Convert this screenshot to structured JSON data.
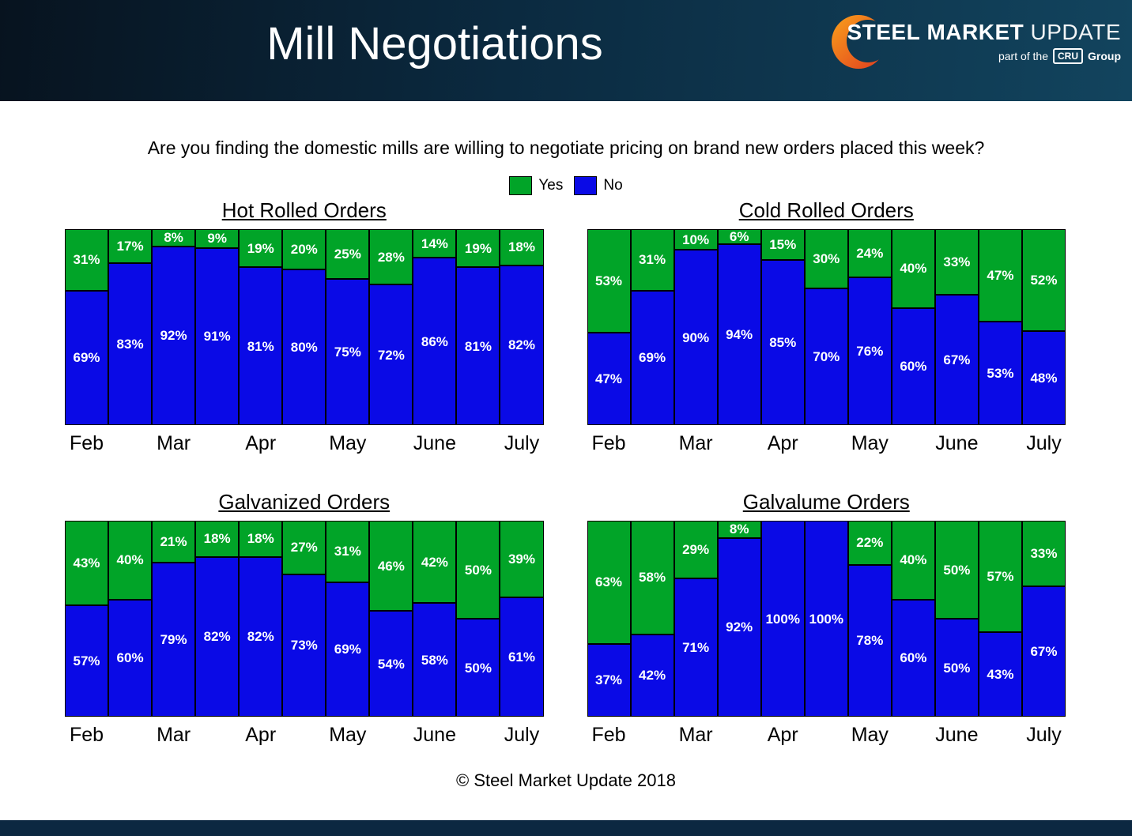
{
  "header": {
    "title": "Mill Negotiations",
    "logo": {
      "brand_steel": "STEEL",
      "brand_market": "MARKET",
      "brand_update": "UPDATE",
      "tagline_prefix": "part of the",
      "tagline_cru": "CRU",
      "tagline_suffix": "Group"
    }
  },
  "question": "Are you finding the domestic mills are willing to negotiate pricing on brand new orders placed this week?",
  "legend": {
    "yes_label": "Yes",
    "no_label": "No"
  },
  "colors": {
    "yes": "#01A428",
    "no": "#0A0AE6"
  },
  "footer": "© Steel Market Update 2018",
  "chart_data": [
    {
      "type": "bar",
      "stacked": true,
      "title": "Hot Rolled Orders",
      "unit": "%",
      "ylim": [
        0,
        100
      ],
      "bar_count": 11,
      "legend_position": "top-center",
      "month_labels": [
        "Feb",
        "Mar",
        "Apr",
        "May",
        "June",
        "July"
      ],
      "month_label_bar_positions": [
        0,
        2,
        4,
        6,
        8,
        10
      ],
      "series": [
        {
          "name": "Yes",
          "color_key": "yes",
          "values": [
            31,
            17,
            8,
            9,
            19,
            20,
            25,
            28,
            14,
            19,
            18
          ]
        },
        {
          "name": "No",
          "color_key": "no",
          "values": [
            69,
            83,
            92,
            91,
            81,
            80,
            75,
            72,
            86,
            81,
            82
          ]
        }
      ]
    },
    {
      "type": "bar",
      "stacked": true,
      "title": "Cold Rolled Orders",
      "unit": "%",
      "ylim": [
        0,
        100
      ],
      "bar_count": 11,
      "legend_position": "top-center",
      "month_labels": [
        "Feb",
        "Mar",
        "Apr",
        "May",
        "June",
        "July"
      ],
      "month_label_bar_positions": [
        0,
        2,
        4,
        6,
        8,
        10
      ],
      "series": [
        {
          "name": "Yes",
          "color_key": "yes",
          "values": [
            53,
            31,
            10,
            6,
            15,
            30,
            24,
            40,
            33,
            47,
            52
          ]
        },
        {
          "name": "No",
          "color_key": "no",
          "values": [
            47,
            69,
            90,
            94,
            85,
            70,
            76,
            60,
            67,
            53,
            48
          ]
        }
      ]
    },
    {
      "type": "bar",
      "stacked": true,
      "title": "Galvanized Orders",
      "unit": "%",
      "ylim": [
        0,
        100
      ],
      "bar_count": 11,
      "legend_position": "top-center",
      "month_labels": [
        "Feb",
        "Mar",
        "Apr",
        "May",
        "June",
        "July"
      ],
      "month_label_bar_positions": [
        0,
        2,
        4,
        6,
        8,
        10
      ],
      "series": [
        {
          "name": "Yes",
          "color_key": "yes",
          "values": [
            43,
            40,
            21,
            18,
            18,
            27,
            31,
            46,
            42,
            50,
            39
          ]
        },
        {
          "name": "No",
          "color_key": "no",
          "values": [
            57,
            60,
            79,
            82,
            82,
            73,
            69,
            54,
            58,
            50,
            61
          ]
        }
      ]
    },
    {
      "type": "bar",
      "stacked": true,
      "title": "Galvalume Orders",
      "unit": "%",
      "ylim": [
        0,
        100
      ],
      "bar_count": 11,
      "legend_position": "top-center",
      "month_labels": [
        "Feb",
        "Mar",
        "Apr",
        "May",
        "June",
        "July"
      ],
      "month_label_bar_positions": [
        0,
        2,
        4,
        6,
        8,
        10
      ],
      "series": [
        {
          "name": "Yes",
          "color_key": "yes",
          "values": [
            63,
            58,
            29,
            8,
            0,
            0,
            22,
            40,
            50,
            57,
            33
          ]
        },
        {
          "name": "No",
          "color_key": "no",
          "values": [
            37,
            42,
            71,
            92,
            100,
            100,
            78,
            60,
            50,
            43,
            67
          ]
        }
      ]
    }
  ]
}
